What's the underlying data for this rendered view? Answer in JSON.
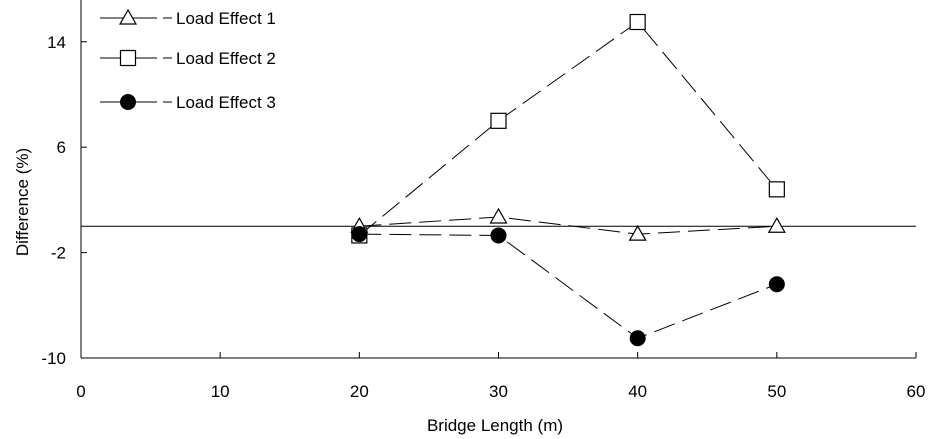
{
  "chart_data": {
    "type": "line",
    "title": "",
    "xlabel": "Bridge Length (m)",
    "ylabel": "Difference (%)",
    "xlim": [
      0,
      60
    ],
    "ylim": [
      -10,
      15.5
    ],
    "x_ticks": [
      0,
      10,
      20,
      30,
      40,
      50,
      60
    ],
    "y_ticks": [
      14,
      6,
      -2,
      -10
    ],
    "zero_line": true,
    "grid": false,
    "legend_position": "top-left",
    "x": [
      20,
      30,
      40,
      50
    ],
    "series": [
      {
        "name": "Load Effect 1",
        "marker": "triangle-open",
        "line": "dashed",
        "values": [
          0.0,
          0.7,
          -0.6,
          0.0
        ]
      },
      {
        "name": "Load Effect 2",
        "marker": "square-open",
        "line": "dashed",
        "values": [
          -0.7,
          8.0,
          15.5,
          2.8
        ]
      },
      {
        "name": "Load Effect 3",
        "marker": "circle-filled",
        "line": "dashed",
        "values": [
          -0.6,
          -0.7,
          -8.5,
          -4.4
        ]
      }
    ]
  }
}
